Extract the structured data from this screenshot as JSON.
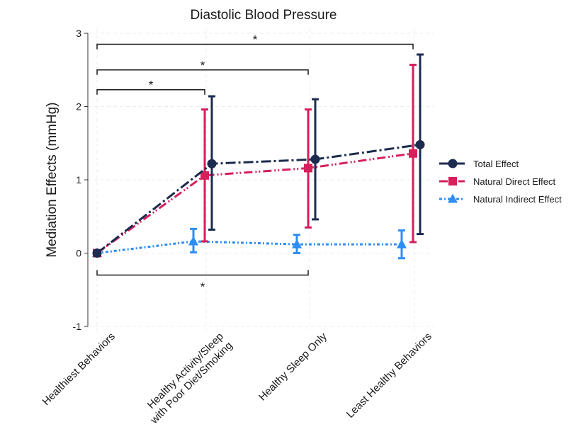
{
  "chart_data": {
    "type": "line",
    "title": "Diastolic Blood Pressure",
    "ylabel": "Mediation Effects (mmHg)",
    "xlabel": "",
    "ylim": [
      -1,
      3
    ],
    "yticks": [
      -1,
      0,
      1,
      2,
      3
    ],
    "grid": true,
    "legend_position": "right",
    "categories": [
      [
        "Healthiest Behaviors"
      ],
      [
        "Healthy Activity/Sleep",
        "with Poor Diet/Smoking"
      ],
      [
        "Healthy Sleep Only"
      ],
      [
        "Least Healthy Behaviors"
      ]
    ],
    "series": [
      {
        "name": "Total Effect",
        "color": "#1c2b4f",
        "marker": "circle",
        "dash": "dash-dot",
        "values": [
          0,
          1.22,
          1.28,
          1.48
        ],
        "ci_lower": [
          null,
          0.32,
          0.46,
          0.26
        ],
        "ci_upper": [
          null,
          2.14,
          2.1,
          2.71
        ]
      },
      {
        "name": "Natural Direct Effect",
        "color": "#d61f5b",
        "marker": "square",
        "dash": "dash-dot-dot",
        "values": [
          0,
          1.06,
          1.16,
          1.36
        ],
        "ci_lower": [
          null,
          0.16,
          0.35,
          0.15
        ],
        "ci_upper": [
          null,
          1.96,
          1.96,
          2.57
        ]
      },
      {
        "name": "Natural Indirect Effect",
        "color": "#2f8ef5",
        "marker": "triangle",
        "dash": "dot",
        "values": [
          0,
          0.16,
          0.12,
          0.12
        ],
        "ci_lower": [
          null,
          0.01,
          0.0,
          -0.07
        ],
        "ci_upper": [
          null,
          0.33,
          0.25,
          0.31
        ]
      }
    ],
    "annotations": [
      {
        "label": "*",
        "from": 0,
        "to": 1,
        "y": 2.23,
        "side": "above"
      },
      {
        "label": "*",
        "from": 0,
        "to": 2,
        "y": 2.5,
        "side": "above"
      },
      {
        "label": "*",
        "from": 0,
        "to": 3,
        "y": 2.85,
        "side": "above"
      },
      {
        "label": "*",
        "from": 0,
        "to": 2,
        "y": -0.3,
        "side": "below"
      }
    ]
  }
}
